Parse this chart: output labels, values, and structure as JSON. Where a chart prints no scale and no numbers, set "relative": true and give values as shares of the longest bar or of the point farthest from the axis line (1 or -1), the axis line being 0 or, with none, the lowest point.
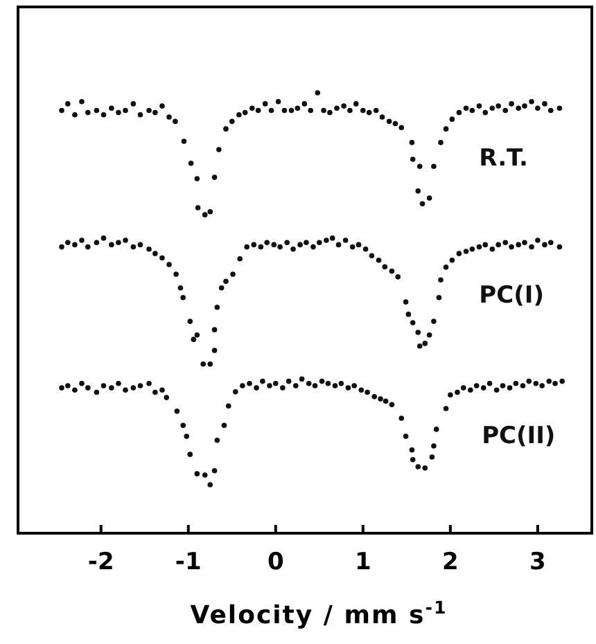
{
  "chart_data": {
    "type": "scatter",
    "xlabel": "Velocity / mm s$^{-1}$",
    "relative": true,
    "xlim": [
      -2.95,
      3.62
    ],
    "xticks": [
      -2,
      -1,
      0,
      1,
      2,
      3
    ],
    "marker": "circle",
    "grid": false,
    "legend": false,
    "series": [
      {
        "name": "R.T.",
        "color": "#111111",
        "x": [
          -2.45,
          -2.38,
          -2.3,
          -2.22,
          -2.15,
          -2.05,
          -1.97,
          -1.88,
          -1.8,
          -1.72,
          -1.63,
          -1.55,
          -1.45,
          -1.38,
          -1.3,
          -1.22,
          -1.15,
          -1.05,
          -0.97,
          -0.9,
          -0.89,
          -0.81,
          -0.75,
          -0.7,
          -0.65,
          -0.57,
          -0.5,
          -0.42,
          -0.35,
          -0.27,
          -0.2,
          -0.12,
          -0.05,
          0.03,
          0.1,
          0.18,
          0.25,
          0.33,
          0.4,
          0.48,
          0.55,
          0.62,
          0.7,
          0.78,
          0.85,
          0.92,
          1.0,
          1.07,
          1.15,
          1.22,
          1.3,
          1.37,
          1.44,
          1.56,
          1.57,
          1.63,
          1.65,
          1.68,
          1.76,
          1.81,
          1.89,
          1.95,
          2.02,
          2.1,
          2.18,
          2.25,
          2.33,
          2.4,
          2.48,
          2.55,
          2.63,
          2.7,
          2.78,
          2.85,
          2.93,
          3.0,
          3.08,
          3.15,
          3.25
        ],
        "values": [
          0.96,
          0.975,
          0.95,
          0.98,
          0.955,
          0.96,
          0.95,
          0.965,
          0.955,
          0.96,
          0.975,
          0.95,
          0.96,
          0.955,
          0.97,
          0.945,
          0.935,
          0.89,
          0.84,
          0.805,
          0.739,
          0.723,
          0.73,
          0.808,
          0.871,
          0.918,
          0.935,
          0.95,
          0.955,
          0.965,
          0.96,
          0.975,
          0.96,
          0.98,
          0.96,
          0.96,
          0.965,
          0.975,
          0.96,
          1.0,
          0.96,
          0.955,
          0.965,
          0.97,
          0.96,
          0.975,
          0.96,
          0.955,
          0.96,
          0.945,
          0.935,
          0.93,
          0.921,
          0.887,
          0.849,
          0.777,
          0.833,
          0.748,
          0.761,
          0.833,
          0.887,
          0.918,
          0.94,
          0.955,
          0.965,
          0.96,
          0.97,
          0.955,
          0.965,
          0.97,
          0.96,
          0.975,
          0.965,
          0.97,
          0.98,
          0.965,
          0.975,
          0.96,
          0.965
        ]
      },
      {
        "name": "PC(I)",
        "color": "#111111",
        "x": [
          -2.45,
          -2.38,
          -2.3,
          -2.22,
          -2.15,
          -2.05,
          -1.97,
          -1.88,
          -1.8,
          -1.72,
          -1.63,
          -1.55,
          -1.45,
          -1.38,
          -1.3,
          -1.22,
          -1.14,
          -1.09,
          -1.06,
          -0.98,
          -0.94,
          -0.9,
          -0.83,
          -0.75,
          -0.7,
          -0.7,
          -0.67,
          -0.62,
          -0.57,
          -0.49,
          -0.41,
          -0.33,
          -0.25,
          -0.17,
          -0.1,
          -0.02,
          0.05,
          0.13,
          0.2,
          0.28,
          0.35,
          0.43,
          0.5,
          0.58,
          0.65,
          0.72,
          0.8,
          0.88,
          0.95,
          1.03,
          1.1,
          1.18,
          1.25,
          1.33,
          1.4,
          1.49,
          1.52,
          1.57,
          1.63,
          1.65,
          1.71,
          1.76,
          1.81,
          1.87,
          1.89,
          1.95,
          2.02,
          2.1,
          2.18,
          2.25,
          2.33,
          2.4,
          2.48,
          2.55,
          2.63,
          2.7,
          2.78,
          2.85,
          2.93,
          3.0,
          3.08,
          3.15,
          3.25
        ],
        "values": [
          0.65,
          0.66,
          0.655,
          0.665,
          0.65,
          0.66,
          0.67,
          0.655,
          0.66,
          0.665,
          0.65,
          0.655,
          0.645,
          0.635,
          0.625,
          0.61,
          0.588,
          0.557,
          0.535,
          0.481,
          0.44,
          0.45,
          0.384,
          0.384,
          0.415,
          0.462,
          0.513,
          0.557,
          0.572,
          0.588,
          0.623,
          0.65,
          0.655,
          0.65,
          0.66,
          0.655,
          0.65,
          0.66,
          0.645,
          0.655,
          0.66,
          0.65,
          0.66,
          0.665,
          0.67,
          0.655,
          0.665,
          0.65,
          0.655,
          0.645,
          0.63,
          0.62,
          0.605,
          0.595,
          0.582,
          0.525,
          0.497,
          0.478,
          0.456,
          0.425,
          0.431,
          0.45,
          0.481,
          0.535,
          0.575,
          0.604,
          0.62,
          0.635,
          0.64,
          0.645,
          0.65,
          0.655,
          0.645,
          0.655,
          0.66,
          0.65,
          0.655,
          0.66,
          0.65,
          0.665,
          0.655,
          0.66,
          0.65
        ]
      },
      {
        "name": "PC(II)",
        "color": "#111111",
        "x": [
          -2.45,
          -2.38,
          -2.3,
          -2.22,
          -2.15,
          -2.05,
          -1.97,
          -1.88,
          -1.8,
          -1.72,
          -1.63,
          -1.55,
          -1.45,
          -1.38,
          -1.3,
          -1.25,
          -1.13,
          -1.06,
          -1.02,
          -0.98,
          -0.9,
          -0.81,
          -0.75,
          -0.7,
          -0.67,
          -0.59,
          -0.54,
          -0.46,
          -0.38,
          -0.3,
          -0.22,
          -0.15,
          -0.07,
          0.0,
          0.08,
          0.15,
          0.23,
          0.3,
          0.38,
          0.45,
          0.53,
          0.6,
          0.68,
          0.75,
          0.83,
          0.9,
          0.98,
          1.05,
          1.13,
          1.2,
          1.26,
          1.33,
          1.44,
          1.49,
          1.56,
          1.57,
          1.63,
          1.71,
          1.79,
          1.81,
          1.84,
          1.95,
          2.0,
          2.08,
          2.15,
          2.23,
          2.3,
          2.38,
          2.45,
          2.53,
          2.6,
          2.68,
          2.75,
          2.83,
          2.9,
          2.98,
          3.05,
          3.13,
          3.2,
          3.28
        ],
        "values": [
          0.33,
          0.335,
          0.325,
          0.34,
          0.33,
          0.32,
          0.335,
          0.33,
          0.34,
          0.325,
          0.33,
          0.335,
          0.34,
          0.32,
          0.325,
          0.308,
          0.277,
          0.245,
          0.22,
          0.179,
          0.135,
          0.132,
          0.11,
          0.142,
          0.211,
          0.245,
          0.289,
          0.321,
          0.335,
          0.34,
          0.33,
          0.345,
          0.335,
          0.34,
          0.33,
          0.345,
          0.335,
          0.35,
          0.34,
          0.335,
          0.345,
          0.34,
          0.335,
          0.34,
          0.33,
          0.335,
          0.325,
          0.32,
          0.31,
          0.305,
          0.3,
          0.292,
          0.261,
          0.22,
          0.189,
          0.167,
          0.151,
          0.148,
          0.173,
          0.198,
          0.236,
          0.283,
          0.314,
          0.32,
          0.33,
          0.325,
          0.335,
          0.33,
          0.34,
          0.325,
          0.335,
          0.33,
          0.34,
          0.335,
          0.345,
          0.34,
          0.335,
          0.345,
          0.34,
          0.345
        ]
      }
    ]
  }
}
